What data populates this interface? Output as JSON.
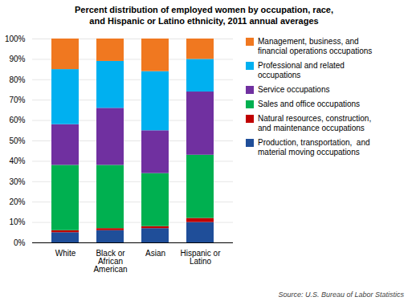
{
  "chart_data": {
    "type": "bar",
    "stacked": true,
    "title": "Percent distribution of employed women by occupation, race,\nand Hispanic or Latino ethnicity, 2011 annual averages",
    "source": "Source: U.S. Bureau of Labor Statistics",
    "categories": [
      "White",
      "Black or\nAfrican\nAmerican",
      "Asian",
      "Hispanic or\nLatino"
    ],
    "series": [
      {
        "name": "Production, transportation,  and\nmaterial moving occupations",
        "color": "#1f4e99",
        "values": [
          5,
          6,
          7,
          10
        ]
      },
      {
        "name": "Natural resources, construction,\nand maintenance occupations",
        "color": "#c00000",
        "values": [
          1,
          1,
          1,
          2
        ]
      },
      {
        "name": "Sales and office occupations",
        "color": "#00b050",
        "values": [
          32,
          31,
          26,
          31
        ]
      },
      {
        "name": "Service occupations",
        "color": "#7030a0",
        "values": [
          20,
          28,
          21,
          31
        ]
      },
      {
        "name": "Professional and related\noccupations",
        "color": "#00b0f0",
        "values": [
          27,
          23,
          29,
          16
        ]
      },
      {
        "name": "Management, business, and\nfinancial operations occupations",
        "color": "#f07820",
        "values": [
          15,
          11,
          16,
          10
        ]
      }
    ],
    "ylim": [
      0,
      100
    ],
    "yticks": [
      {
        "value": 0,
        "label": "0%"
      },
      {
        "value": 10,
        "label": "10%"
      },
      {
        "value": 20,
        "label": "20%"
      },
      {
        "value": 30,
        "label": "30%"
      },
      {
        "value": 40,
        "label": "40%"
      },
      {
        "value": 50,
        "label": "50%"
      },
      {
        "value": 60,
        "label": "60%"
      },
      {
        "value": 70,
        "label": "70%"
      },
      {
        "value": 80,
        "label": "80%"
      },
      {
        "value": 90,
        "label": "90%"
      },
      {
        "value": 100,
        "label": "100%"
      }
    ],
    "grid": true,
    "legend": "right"
  }
}
